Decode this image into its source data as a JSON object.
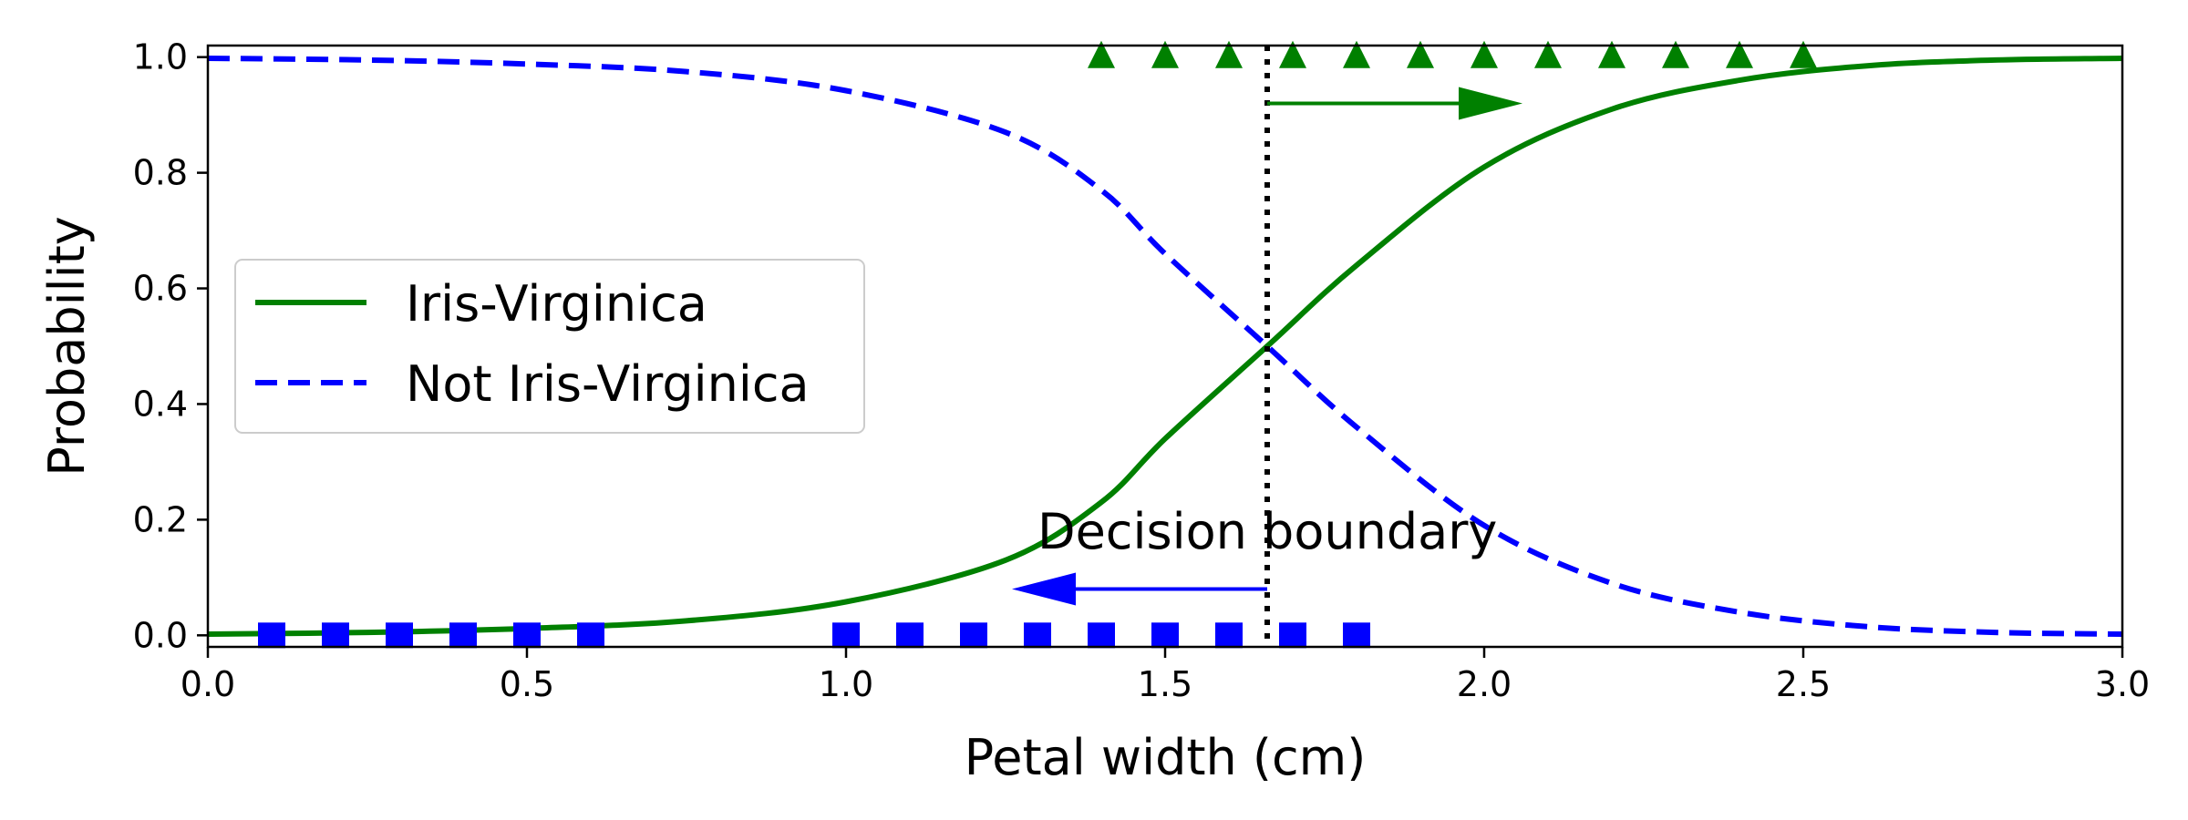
{
  "chart_data": {
    "type": "line",
    "xlabel": "Petal width (cm)",
    "ylabel": "Probability",
    "xlim": [
      0.0,
      3.0
    ],
    "ylim": [
      -0.02,
      1.02
    ],
    "x_ticks": [
      "0.0",
      "0.5",
      "1.0",
      "1.5",
      "2.0",
      "2.5",
      "3.0"
    ],
    "y_ticks": [
      "0.0",
      "0.2",
      "0.4",
      "0.6",
      "0.8",
      "1.0"
    ],
    "grid": false,
    "legend_position": "center-left",
    "series": [
      {
        "name": "Iris-Virginica",
        "style": "solid",
        "color": "#008000",
        "x": [
          0.0,
          0.25,
          0.5,
          0.75,
          1.0,
          1.25,
          1.4,
          1.5,
          1.66,
          1.8,
          2.0,
          2.2,
          2.4,
          2.6,
          2.8,
          3.0
        ],
        "values": [
          0.002,
          0.005,
          0.012,
          0.025,
          0.058,
          0.13,
          0.23,
          0.34,
          0.5,
          0.64,
          0.81,
          0.91,
          0.96,
          0.985,
          0.995,
          0.998
        ]
      },
      {
        "name": "Not Iris-Virginica",
        "style": "dashed",
        "color": "#0000ff",
        "x": [
          0.0,
          0.25,
          0.5,
          0.75,
          1.0,
          1.25,
          1.4,
          1.5,
          1.66,
          1.8,
          2.0,
          2.2,
          2.4,
          2.6,
          2.8,
          3.0
        ],
        "values": [
          0.998,
          0.995,
          0.988,
          0.975,
          0.942,
          0.87,
          0.77,
          0.66,
          0.5,
          0.36,
          0.19,
          0.09,
          0.04,
          0.015,
          0.005,
          0.002
        ]
      }
    ],
    "markers": [
      {
        "class": "Iris-Virginica",
        "shape": "triangle",
        "color": "#008000",
        "y": 1.0,
        "x": [
          1.4,
          1.5,
          1.6,
          1.7,
          1.8,
          1.9,
          2.0,
          2.1,
          2.2,
          2.3,
          2.4,
          2.5
        ]
      },
      {
        "class": "Not Iris-Virginica",
        "shape": "square",
        "color": "#0000ff",
        "y": 0.0,
        "x": [
          0.1,
          0.2,
          0.3,
          0.4,
          0.5,
          0.6,
          1.0,
          1.1,
          1.2,
          1.3,
          1.4,
          1.5,
          1.6,
          1.7,
          1.8
        ]
      }
    ],
    "decision_boundary": {
      "x": 1.66,
      "label": "Decision boundary",
      "label_x": 1.3,
      "label_y": 0.15
    },
    "arrows": [
      {
        "color": "#008000",
        "x_start": 1.66,
        "x_end": 2.06,
        "y": 0.92
      },
      {
        "color": "#0000ff",
        "x_start": 1.66,
        "x_end": 1.26,
        "y": 0.08
      }
    ]
  }
}
